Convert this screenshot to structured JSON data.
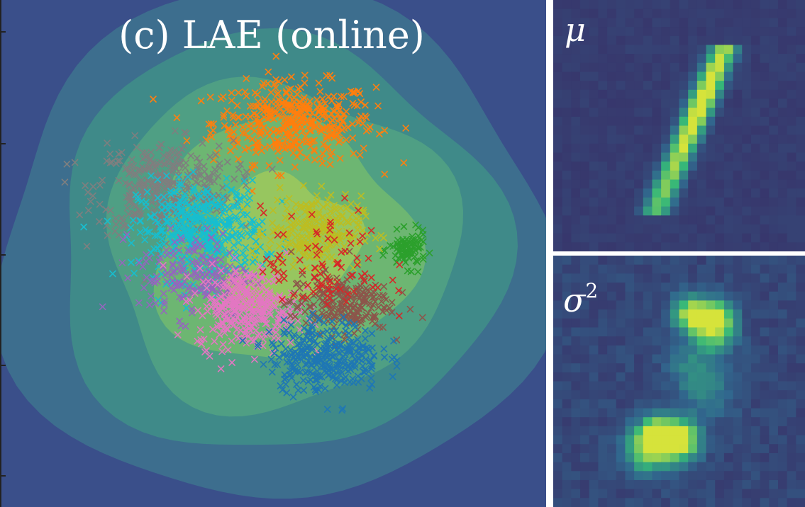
{
  "colors": {
    "background_levels": [
      "#3a4f8a",
      "#3d6e8e",
      "#3f8a89",
      "#4f9f84",
      "#6db672",
      "#97c65f"
    ],
    "mnist_dark": "#462a6e",
    "mnist_bright": "#d6e33b"
  },
  "chart_data": [
    {
      "type": "scatter",
      "title": "(c) LAE (online)",
      "xlabel": "",
      "ylabel": "",
      "xlim": [
        -1,
        1
      ],
      "ylim": [
        -1,
        1
      ],
      "background": "uncertainty contour (filled)",
      "grid": false,
      "legend": "none",
      "marker": "x",
      "series": [
        {
          "color": "#ff7f0e",
          "center": [
            0.08,
            0.55
          ],
          "spread": [
            0.26,
            0.14
          ],
          "count": 420
        },
        {
          "color": "#7f7f7f",
          "center": [
            -0.42,
            0.28
          ],
          "spread": [
            0.22,
            0.16
          ],
          "count": 380
        },
        {
          "color": "#17becf",
          "center": [
            -0.28,
            0.1
          ],
          "spread": [
            0.2,
            0.17
          ],
          "count": 420
        },
        {
          "color": "#2ca02c",
          "center": [
            0.52,
            0.02
          ],
          "spread": [
            0.06,
            0.06
          ],
          "count": 90
        },
        {
          "color": "#bcbd22",
          "center": [
            0.16,
            0.1
          ],
          "spread": [
            0.15,
            0.12
          ],
          "count": 260
        },
        {
          "color": "#9467bd",
          "center": [
            -0.3,
            -0.08
          ],
          "spread": [
            0.18,
            0.15
          ],
          "count": 180
        },
        {
          "color": "#e377c2",
          "center": [
            -0.1,
            -0.22
          ],
          "spread": [
            0.16,
            0.14
          ],
          "count": 330
        },
        {
          "color": "#8c564b",
          "center": [
            0.26,
            -0.2
          ],
          "spread": [
            0.16,
            0.1
          ],
          "count": 220
        },
        {
          "color": "#d62728",
          "center": [
            0.2,
            -0.05
          ],
          "spread": [
            0.2,
            0.2
          ],
          "count": 90
        },
        {
          "color": "#1f77b4",
          "center": [
            0.2,
            -0.42
          ],
          "spread": [
            0.18,
            0.12
          ],
          "count": 320
        }
      ]
    },
    {
      "type": "heatmap",
      "title": "μ",
      "size": [
        28,
        28
      ],
      "content": "mean reconstruction: slanted stroke (digit one)"
    },
    {
      "type": "heatmap",
      "title": "σ²",
      "title_main": "σ",
      "title_sup": "2",
      "size": [
        28,
        28
      ],
      "content": "variance: scattered bright blobs"
    }
  ]
}
